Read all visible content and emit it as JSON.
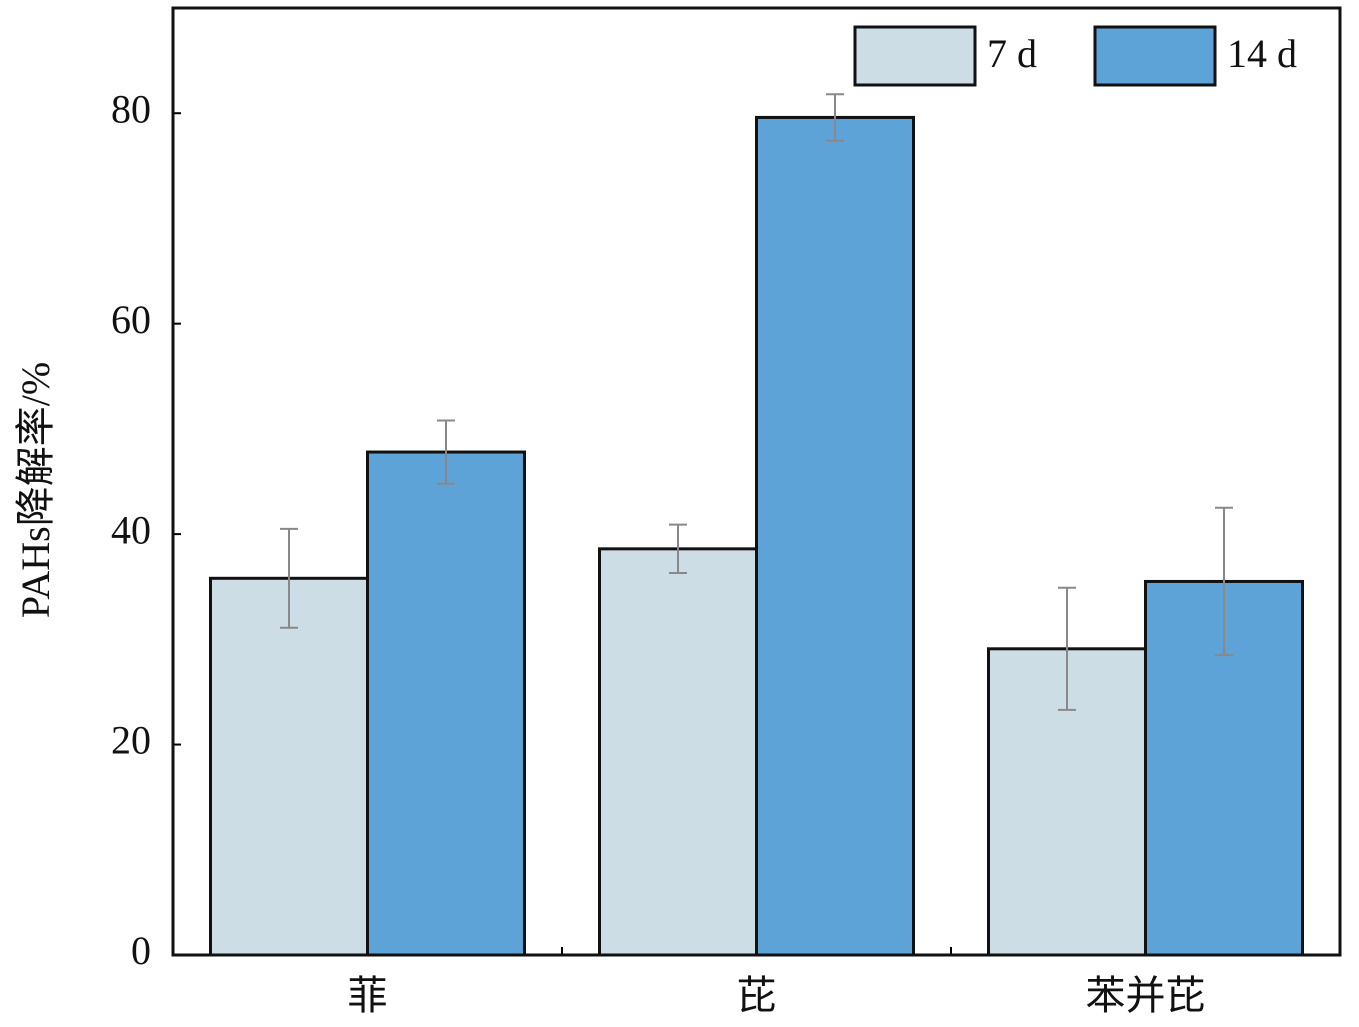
{
  "chart_data": {
    "type": "bar",
    "ylabel": "PAHs降解率/%",
    "categories": [
      "菲",
      "芘",
      "苯并芘"
    ],
    "series": [
      {
        "name": "7 d",
        "color": "#cddde6",
        "values": [
          35.8,
          38.6,
          29.1
        ],
        "errors": [
          4.7,
          2.3,
          5.8
        ]
      },
      {
        "name": "14 d",
        "color": "#5ea3d8",
        "values": [
          47.8,
          79.6,
          35.5
        ],
        "errors": [
          3.0,
          2.2,
          7.0
        ]
      }
    ],
    "ylim": [
      0,
      90
    ],
    "yticks": [
      0,
      20,
      40,
      60,
      80
    ],
    "grid": false,
    "legend": "upper-right"
  }
}
